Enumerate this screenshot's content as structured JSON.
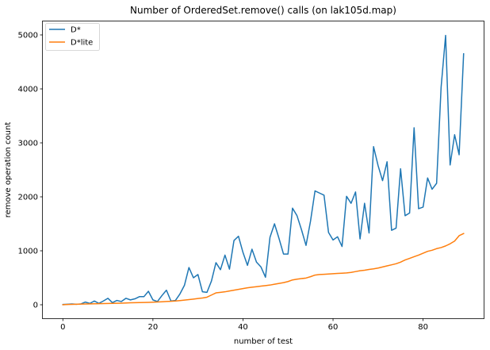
{
  "chart_data": {
    "type": "line",
    "title": "Number of OrderedSet.remove() calls (on lak105d.map)",
    "xlabel": "number of test",
    "ylabel": "remove operation count",
    "xlim": [
      -4.45,
      93.45
    ],
    "ylim": [
      -250,
      5250
    ],
    "xticks": [
      0,
      20,
      40,
      60,
      80
    ],
    "yticks": [
      0,
      1000,
      2000,
      3000,
      4000,
      5000
    ],
    "grid": false,
    "legend_position": "upper-left",
    "x": [
      0,
      1,
      2,
      3,
      4,
      5,
      6,
      7,
      8,
      9,
      10,
      11,
      12,
      13,
      14,
      15,
      16,
      17,
      18,
      19,
      20,
      21,
      22,
      23,
      24,
      25,
      26,
      27,
      28,
      29,
      30,
      31,
      32,
      33,
      34,
      35,
      36,
      37,
      38,
      39,
      40,
      41,
      42,
      43,
      44,
      45,
      46,
      47,
      48,
      49,
      50,
      51,
      52,
      53,
      54,
      55,
      56,
      57,
      58,
      59,
      60,
      61,
      62,
      63,
      64,
      65,
      66,
      67,
      68,
      69,
      70,
      71,
      72,
      73,
      74,
      75,
      76,
      77,
      78,
      79,
      80,
      81,
      82,
      83,
      84,
      85,
      86,
      87,
      88,
      89
    ],
    "series": [
      {
        "name": "D*",
        "color": "#1f77b4",
        "values": [
          5,
          10,
          15,
          10,
          15,
          50,
          25,
          70,
          25,
          70,
          120,
          40,
          80,
          60,
          120,
          90,
          110,
          150,
          150,
          250,
          90,
          60,
          170,
          270,
          70,
          80,
          200,
          360,
          690,
          500,
          560,
          240,
          230,
          440,
          780,
          650,
          920,
          660,
          1190,
          1270,
          970,
          730,
          1030,
          790,
          700,
          510,
          1250,
          1500,
          1230,
          940,
          940,
          1790,
          1650,
          1390,
          1100,
          1550,
          2110,
          2070,
          2030,
          1340,
          1200,
          1260,
          1080,
          2010,
          1880,
          2090,
          1220,
          1880,
          1330,
          2930,
          2580,
          2300,
          2650,
          1380,
          1420,
          2520,
          1650,
          1700,
          3280,
          1780,
          1810,
          2350,
          2140,
          2250,
          4030,
          4990,
          2590,
          3150,
          2780,
          4650
        ]
      },
      {
        "name": "D*lite",
        "color": "#ff7f0e",
        "values": [
          0,
          5,
          8,
          10,
          12,
          14,
          16,
          18,
          20,
          22,
          24,
          26,
          28,
          30,
          33,
          36,
          38,
          40,
          42,
          45,
          48,
          52,
          56,
          60,
          64,
          70,
          78,
          86,
          95,
          105,
          115,
          125,
          140,
          180,
          220,
          230,
          240,
          255,
          270,
          285,
          300,
          315,
          325,
          335,
          345,
          355,
          365,
          380,
          395,
          410,
          430,
          460,
          475,
          485,
          495,
          520,
          550,
          560,
          565,
          570,
          575,
          580,
          585,
          590,
          600,
          615,
          630,
          640,
          655,
          665,
          680,
          700,
          720,
          740,
          760,
          790,
          830,
          860,
          890,
          920,
          955,
          990,
          1010,
          1040,
          1060,
          1090,
          1130,
          1180,
          1280,
          1320
        ]
      }
    ]
  }
}
